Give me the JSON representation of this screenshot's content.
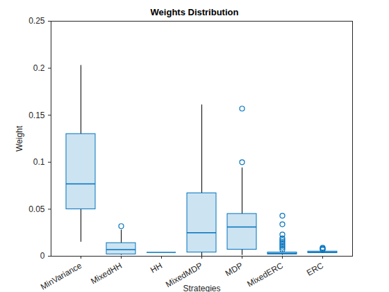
{
  "chart_data": {
    "type": "box",
    "title": "Weights Distribution",
    "xlabel": "Strategies",
    "ylabel": "Weight",
    "categories": [
      "MinVariance",
      "MixedHH",
      "HH",
      "MixedMDP",
      "MDP",
      "MixedERC",
      "ERC"
    ],
    "whisker_low": [
      0.015,
      0.001,
      0.004,
      0.0,
      0.001,
      0.001,
      0.003
    ],
    "q1": [
      0.05,
      0.002,
      0.004,
      0.004,
      0.007,
      0.002,
      0.0035
    ],
    "median": [
      0.077,
      0.007,
      0.004,
      0.025,
      0.031,
      0.003,
      0.004
    ],
    "q3": [
      0.13,
      0.014,
      0.004,
      0.067,
      0.045,
      0.004,
      0.005
    ],
    "whisker_high": [
      0.203,
      0.028,
      0.004,
      0.161,
      0.094,
      0.005,
      0.006
    ],
    "outliers": [
      [],
      [
        0.032
      ],
      [],
      [],
      [
        0.1,
        0.157
      ],
      [
        0.007,
        0.009,
        0.011,
        0.013,
        0.015,
        0.017,
        0.019,
        0.023,
        0.034,
        0.043
      ],
      [
        0.007,
        0.008,
        0.009
      ]
    ],
    "color": "#0072BD",
    "ylim": [
      0,
      0.25
    ],
    "yticks": [
      0,
      0.05,
      0.1,
      0.15,
      0.2,
      0.25
    ],
    "grid": false
  }
}
